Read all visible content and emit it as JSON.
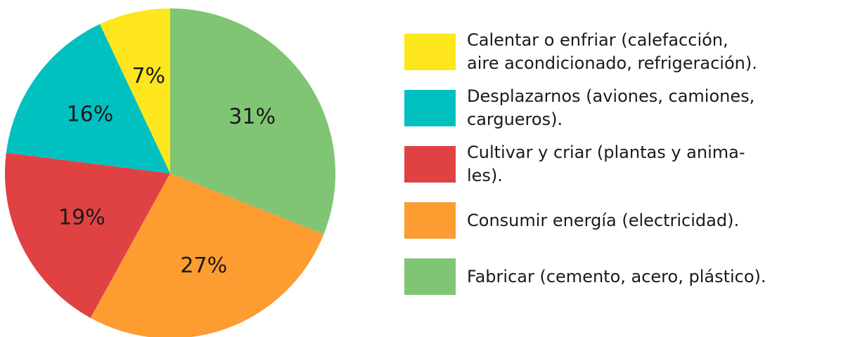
{
  "chart_data": {
    "type": "pie",
    "categories": [
      "Calentar o enfriar (calefacción,\naire acondicionado, refrigeración).",
      "Desplazarnos (aviones, camiones,\ncargueros).",
      "Cultivar y criar (plantas y anima-\nles).",
      "Consumir energía (electricidad).",
      "Fabricar (cemento, acero, plástico)."
    ],
    "values": [
      7,
      16,
      19,
      27,
      31
    ],
    "value_labels": [
      "7%",
      "16%",
      "19%",
      "27%",
      "31%"
    ],
    "colors": [
      "#fde61c",
      "#00c0c0",
      "#e04244",
      "#fd9c31",
      "#80c574"
    ],
    "startangle": 90,
    "counterclock": true,
    "legend": "right"
  }
}
